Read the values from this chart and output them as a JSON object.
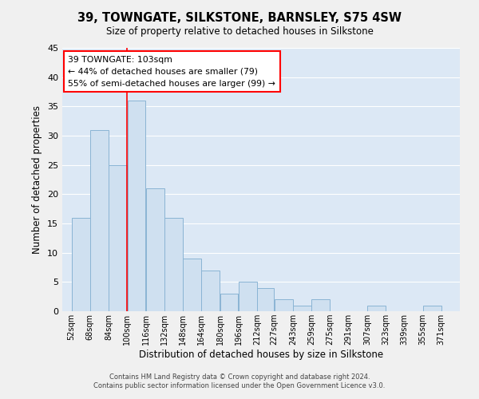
{
  "title": "39, TOWNGATE, SILKSTONE, BARNSLEY, S75 4SW",
  "subtitle": "Size of property relative to detached houses in Silkstone",
  "xlabel": "Distribution of detached houses by size in Silkstone",
  "ylabel": "Number of detached properties",
  "bar_left_edges": [
    52,
    68,
    84,
    100,
    116,
    132,
    148,
    164,
    180,
    196,
    212,
    227,
    243,
    259,
    275,
    291,
    307,
    323,
    339,
    355
  ],
  "bar_widths": [
    16,
    16,
    16,
    16,
    16,
    16,
    16,
    16,
    16,
    16,
    15,
    16,
    16,
    16,
    16,
    16,
    16,
    16,
    16,
    16
  ],
  "bar_heights": [
    16,
    31,
    25,
    36,
    21,
    16,
    9,
    7,
    3,
    5,
    4,
    2,
    1,
    2,
    0,
    0,
    1,
    0,
    0,
    1
  ],
  "bar_color": "#cfe0f0",
  "bar_edge_color": "#8ab4d4",
  "grid_color": "#ffffff",
  "bg_color": "#dce8f5",
  "fig_bg_color": "#f0f0f0",
  "property_line_x": 100,
  "annotation_line1": "39 TOWNGATE: 103sqm",
  "annotation_line2": "← 44% of detached houses are smaller (79)",
  "annotation_line3": "55% of semi-detached houses are larger (99) →",
  "yticks": [
    0,
    5,
    10,
    15,
    20,
    25,
    30,
    35,
    40,
    45
  ],
  "ylim": [
    0,
    45
  ],
  "xlim_left": 44,
  "xlim_right": 387,
  "xtick_positions": [
    52,
    68,
    84,
    100,
    116,
    132,
    148,
    164,
    180,
    196,
    212,
    227,
    243,
    259,
    275,
    291,
    307,
    323,
    339,
    355,
    371
  ],
  "xtick_labels": [
    "52sqm",
    "68sqm",
    "84sqm",
    "100sqm",
    "116sqm",
    "132sqm",
    "148sqm",
    "164sqm",
    "180sqm",
    "196sqm",
    "212sqm",
    "227sqm",
    "243sqm",
    "259sqm",
    "275sqm",
    "291sqm",
    "307sqm",
    "323sqm",
    "339sqm",
    "355sqm",
    "371sqm"
  ],
  "footer_line1": "Contains HM Land Registry data © Crown copyright and database right 2024.",
  "footer_line2": "Contains public sector information licensed under the Open Government Licence v3.0."
}
